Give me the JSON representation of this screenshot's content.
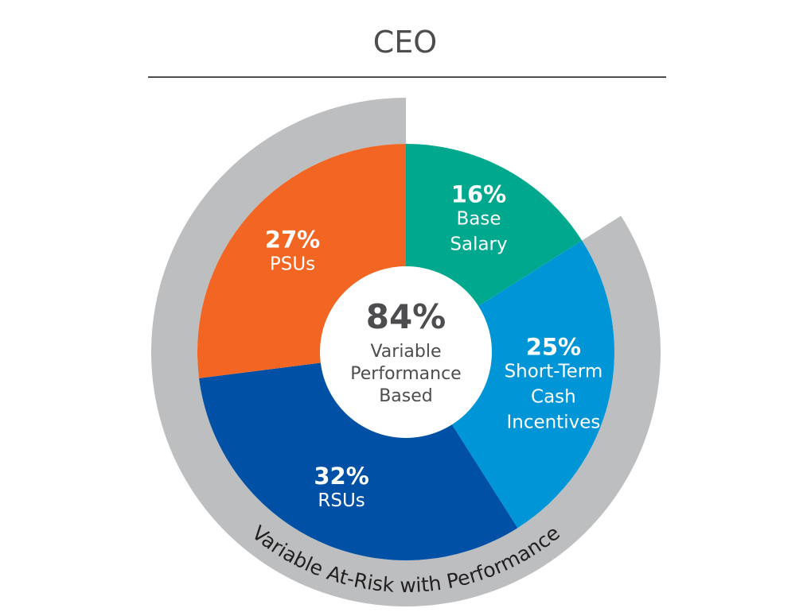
{
  "chart_data": {
    "type": "pie",
    "title": "CEO",
    "categories": [
      "Base Salary",
      "Short-Term Cash Incentives",
      "RSUs",
      "PSUs"
    ],
    "values": [
      16,
      25,
      32,
      27
    ],
    "value_labels": [
      "16%",
      "25%",
      "32%",
      "27%"
    ],
    "slice_labels": [
      [
        "Base",
        "Salary"
      ],
      [
        "Short-Term",
        "Cash",
        "Incentives"
      ],
      [
        "RSUs"
      ],
      [
        "PSUs"
      ]
    ],
    "center": {
      "value": "84%",
      "lines": [
        "Variable",
        "Performance",
        "Based"
      ]
    },
    "outer_ring_label": "Variable At-Risk with Performance",
    "outer_ring_covers": [
      "Short-Term Cash Incentives",
      "RSUs",
      "PSUs"
    ],
    "colors": {
      "Base Salary": "#00a88e",
      "Short-Term Cash Incentives": "#0095d6",
      "RSUs": "#0051a5",
      "PSUs": "#f26522",
      "ring": "#bcbec0",
      "title_rule": "#4d4d4f"
    }
  }
}
